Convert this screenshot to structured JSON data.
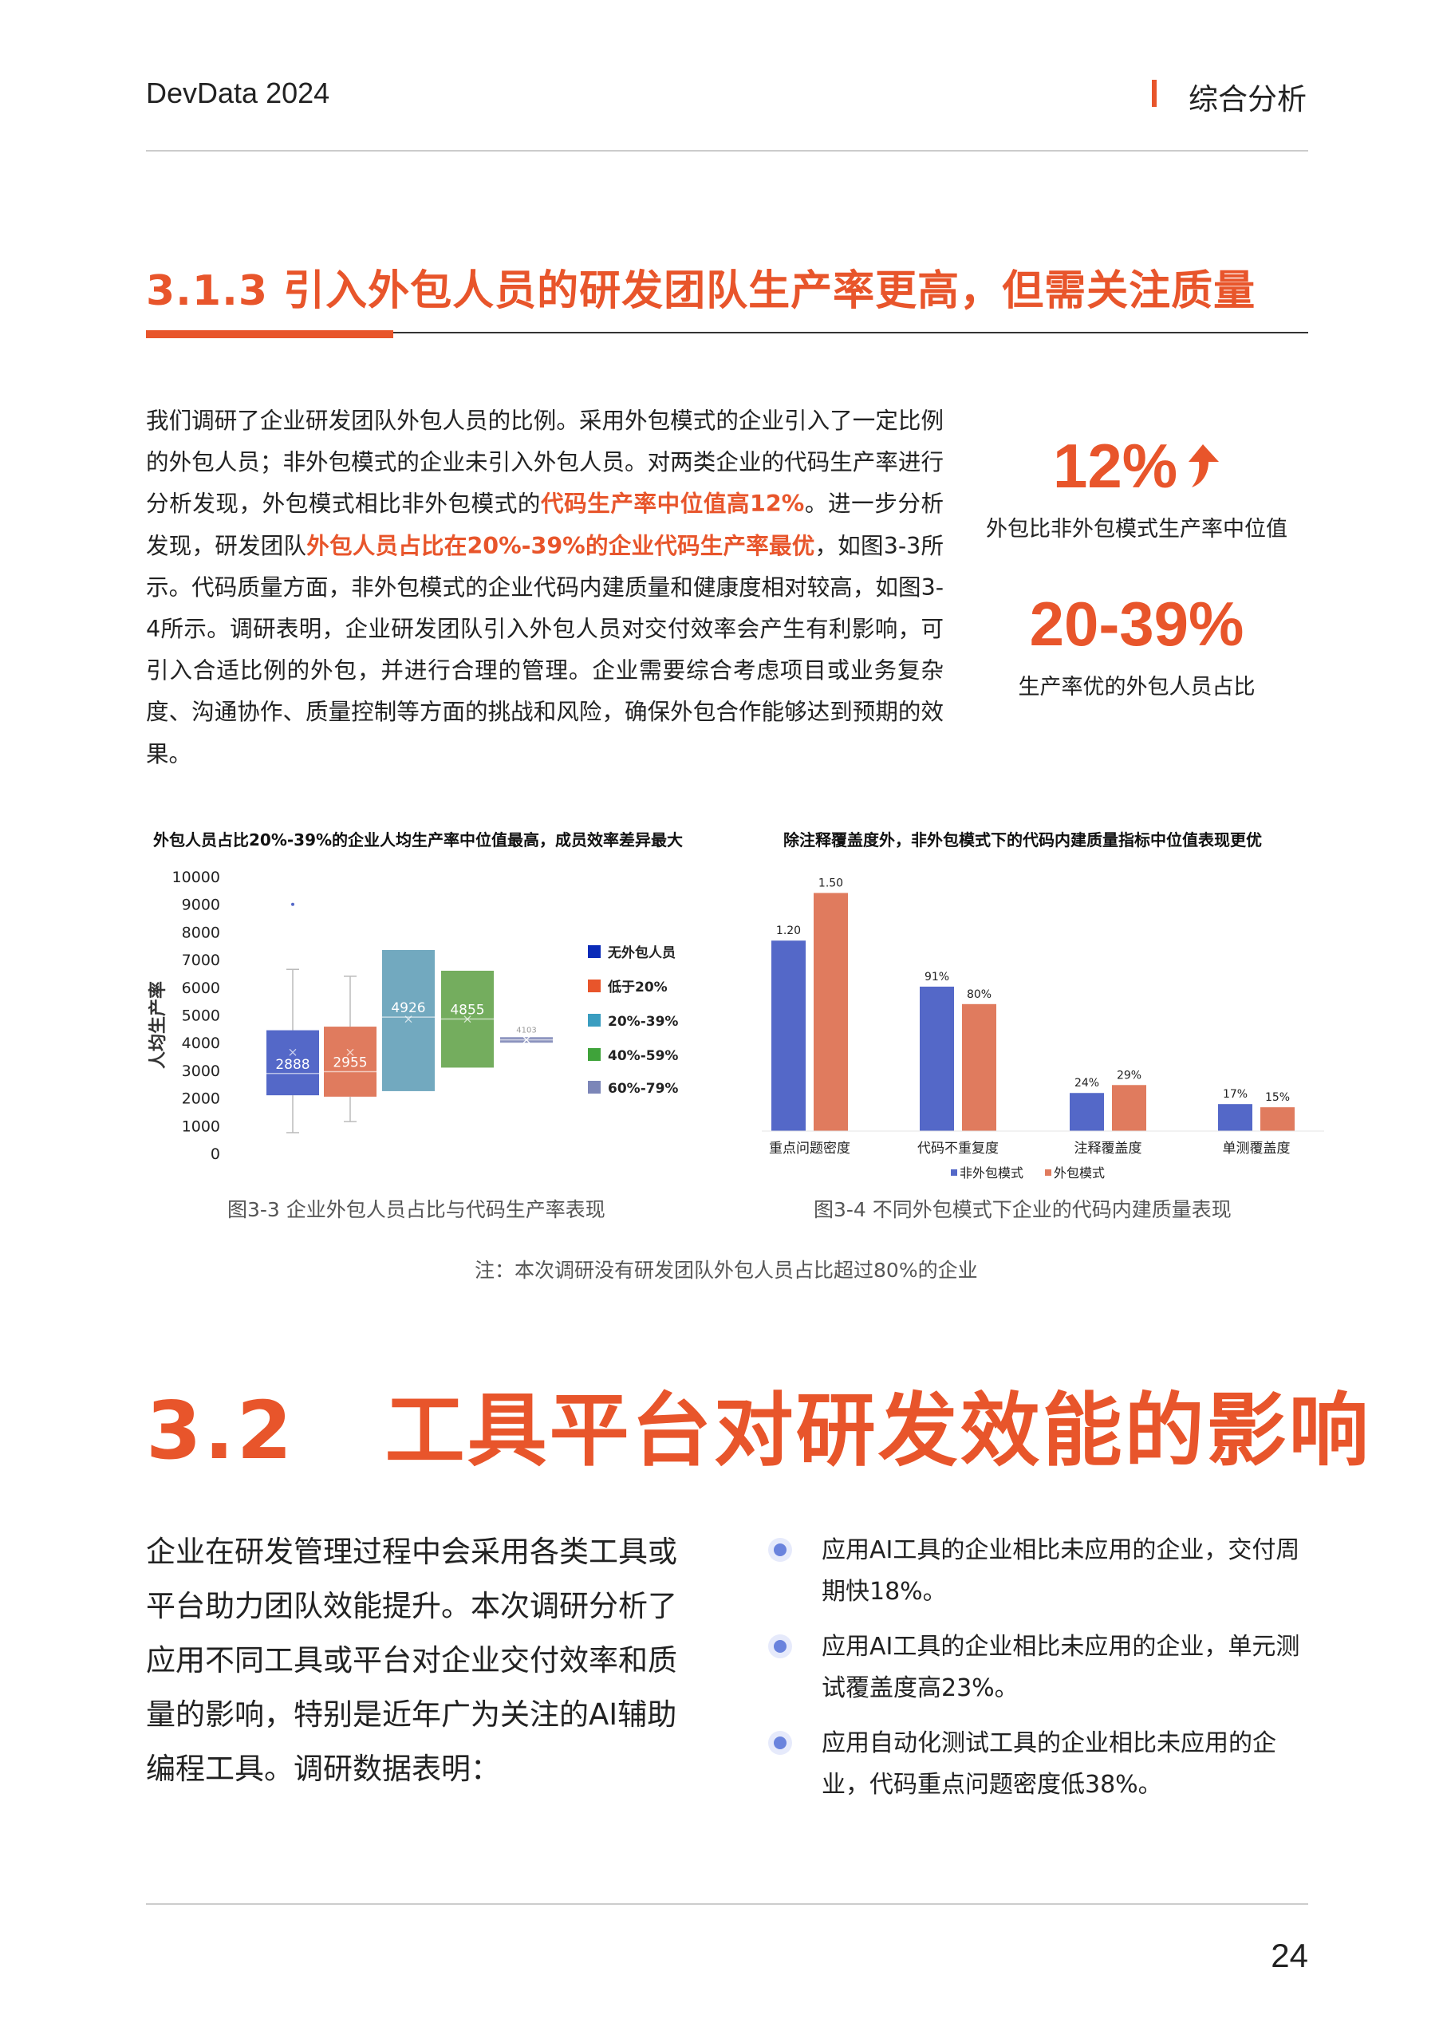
{
  "header": {
    "left": "DevData 2024",
    "right": "综合分析"
  },
  "section": {
    "title": "3.1.3 引入外包人员的研发团队生产率更高，但需关注质量"
  },
  "paragraph": {
    "parts": [
      {
        "text": "我们调研了企业研发团队外包人员的比例。采用外包模式的企业引入了一定比例的外包人员；非外包模式的企业未引入外包人员。对两类企业的代码生产率进行分析发现，外包模式相比非外包模式的",
        "highlight": false
      },
      {
        "text": "代码生产率中位值高12%",
        "highlight": true
      },
      {
        "text": "。进一步分析发现，研发团队",
        "highlight": false
      },
      {
        "text": "外包人员占比在20%-39%的企业代码生产率最优",
        "highlight": true
      },
      {
        "text": "，如图3-3所示。代码质量方面，非外包模式的企业代码内建质量和健康度相对较高，如图3-4所示。调研表明，企业研发团队引入外包人员对交付效率会产生有利影响，可引入合适比例的外包，并进行合理的管理。企业需要综合考虑项目或业务复杂度、沟通协作、质量控制等方面的挑战和风险，确保外包合作能够达到预期的效果。",
        "highlight": false
      }
    ]
  },
  "stats": [
    {
      "value": "12%",
      "icon": "arrow-up-icon",
      "label": "外包比非外包模式生产率中位值"
    },
    {
      "value": "20-39%",
      "label": "生产率优的外包人员占比"
    }
  ],
  "colors": {
    "accent": "#E8552B",
    "bar_blue": "#5468C8",
    "bar_orange": "#E07B5E"
  },
  "chart_data": [
    {
      "type": "boxplot",
      "title": "外包人员占比20%-39%的企业人均生产率中位值最高，成员效率差异最大",
      "ylabel": "人均生产率",
      "ylim": [
        0,
        10000
      ],
      "yticks": [
        "0",
        "1000",
        "2000",
        "3000",
        "4000",
        "5000",
        "6000",
        "7000",
        "8000",
        "9000",
        "10000"
      ],
      "legend_position": "right",
      "series": [
        {
          "name": "无外包人员",
          "color": "#5468C8",
          "legend_color": "#0A2BB8",
          "min": 750,
          "q1": 2100,
          "median": 2888,
          "q3": 4450,
          "max": 6650,
          "mean": 3650,
          "outliers": [
            9000
          ],
          "label": "2888"
        },
        {
          "name": "低于20%",
          "color": "#E07B5E",
          "legend_color": "#E8552B",
          "min": 1150,
          "q1": 2050,
          "median": 2955,
          "q3": 4580,
          "max": 6400,
          "mean": 3650,
          "outliers": [],
          "label": "2955"
        },
        {
          "name": "20%-39%",
          "color": "#72A9BF",
          "legend_color": "#3A9DC0",
          "min": 2250,
          "q1": 2250,
          "median": 4926,
          "q3": 7350,
          "max": 7350,
          "mean": 4850,
          "outliers": [],
          "label": "4926"
        },
        {
          "name": "40%-59%",
          "color": "#74AD5E",
          "legend_color": "#3FA33A",
          "min": 3100,
          "q1": 3100,
          "median": 4855,
          "q3": 6600,
          "max": 6600,
          "mean": 4850,
          "outliers": [],
          "label": "4855"
        },
        {
          "name": "60%-79%",
          "color": "#8B93BE",
          "legend_color": "#7C86B8",
          "min": 4000,
          "q1": 4000,
          "median": 4103,
          "q3": 4200,
          "max": 4200,
          "mean": 4103,
          "outliers": [],
          "label": "4103"
        }
      ],
      "caption": "图3-3 企业外包人员占比与代码生产率表现"
    },
    {
      "type": "bar",
      "title": "除注释覆盖度外，非外包模式下的代码内建质量指标中位值表现更优",
      "categories": [
        "重点问题密度",
        "代码不重复度",
        "注释覆盖度",
        "单测覆盖度"
      ],
      "legend_position": "bottom",
      "series": [
        {
          "name": "非外包模式",
          "color": "#5468C8",
          "values": [
            1.2,
            0.91,
            0.24,
            0.17
          ],
          "labels": [
            "1.20",
            "91%",
            "24%",
            "17%"
          ]
        },
        {
          "name": "外包模式",
          "color": "#E07B5E",
          "values": [
            1.5,
            0.8,
            0.29,
            0.15
          ],
          "labels": [
            "1.50",
            "80%",
            "29%",
            "15%"
          ]
        }
      ],
      "caption": "图3-4 不同外包模式下企业的代码内建质量表现"
    }
  ],
  "note": "注：本次调研没有研发团队外包人员占比超过80%的企业",
  "section2": {
    "title": "3.2   工具平台对研发效能的影响",
    "paragraph": "企业在研发管理过程中会采用各类工具或平台助力团队效能提升。本次调研分析了应用不同工具或平台对企业交付效率和质量的影响，特别是近年广为关注的AI辅助编程工具。调研数据表明：",
    "bullets": [
      "应用AI工具的企业相比未应用的企业，交付周期快18%。",
      "应用AI工具的企业相比未应用的企业，单元测试覆盖度高23%。",
      "应用自动化测试工具的企业相比未应用的企业，代码重点问题密度低38%。"
    ]
  },
  "footer": {
    "page": "24"
  }
}
